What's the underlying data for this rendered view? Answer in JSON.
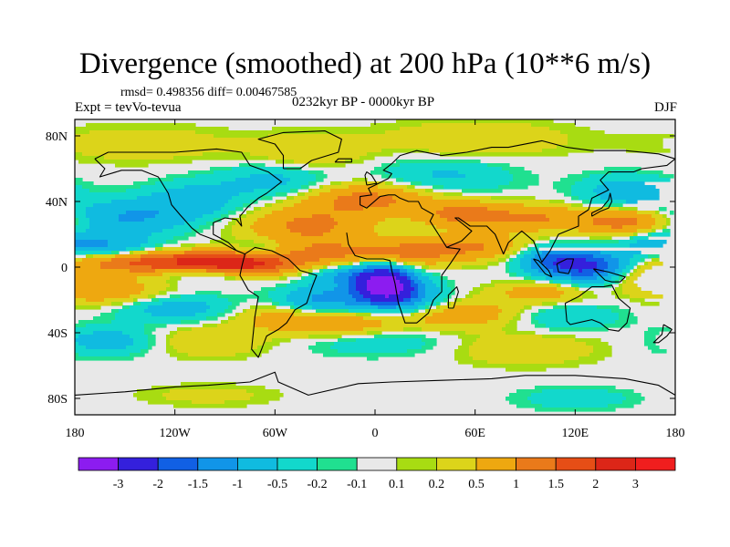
{
  "header": {
    "title": "Divergence (smoothed) at 200 hPa (10**6 m/s)",
    "stats": "rmsd= 0.498356 diff= 0.00467585",
    "experiment": "Expt = tevVo-tevua",
    "period": "0232kyr BP - 0000kyr BP",
    "season": "DJF"
  },
  "chart_data": {
    "type": "heatmap",
    "title": "Divergence (smoothed) at 200 hPa (10**6 m/s)",
    "xlabel": "",
    "ylabel": "",
    "x_range": [
      -180,
      180
    ],
    "y_range": [
      -90,
      90
    ],
    "x_ticks": [
      {
        "value": -180,
        "label": "180"
      },
      {
        "value": -120,
        "label": "120W"
      },
      {
        "value": -60,
        "label": "60W"
      },
      {
        "value": 0,
        "label": "0"
      },
      {
        "value": 60,
        "label": "60E"
      },
      {
        "value": 120,
        "label": "120E"
      },
      {
        "value": 180,
        "label": "180"
      }
    ],
    "y_ticks": [
      {
        "value": 80,
        "label": "80N"
      },
      {
        "value": 40,
        "label": "40N"
      },
      {
        "value": 0,
        "label": "0"
      },
      {
        "value": -40,
        "label": "40S"
      },
      {
        "value": -80,
        "label": "80S"
      }
    ],
    "colorbar": {
      "boundaries": [
        "-3",
        "-2",
        "-1.5",
        "-1",
        "-0.5",
        "-0.2",
        "-0.1",
        "0.1",
        "0.2",
        "0.5",
        "1",
        "1.5",
        "2",
        "3"
      ],
      "colors": [
        "#8c1cf0",
        "#3420dc",
        "#1160e4",
        "#1195e8",
        "#10bbe0",
        "#12d8cc",
        "#20e090",
        "#e8e8e8",
        "#a8dc12",
        "#dcd41a",
        "#eea810",
        "#ea7a1a",
        "#e64e16",
        "#dc2618",
        "#f01e1e"
      ]
    },
    "features": [
      {
        "name": "Indian Ocean / Africa convergence minimum",
        "lon": 5,
        "lat": -10,
        "value": -3
      },
      {
        "name": "Western Pacific convergence",
        "lon": 130,
        "lat": 0,
        "value": -2
      },
      {
        "name": "Equatorial Atlantic divergence maximum",
        "lon": -85,
        "lat": 2,
        "value": 2
      },
      {
        "name": "Central Pacific divergence band",
        "lon": -140,
        "lat": 3,
        "value": 1.5
      },
      {
        "name": "Northern midlatitude Atlantic divergence",
        "lon": -30,
        "lat": 35,
        "value": 1
      },
      {
        "name": "North Pacific convergence",
        "lon": -150,
        "lat": 30,
        "value": -1
      },
      {
        "name": "South Atlantic convergence",
        "lon": -30,
        "lat": -20,
        "value": -1
      },
      {
        "name": "Southern Indian Ocean divergence",
        "lon": 70,
        "lat": -30,
        "value": 0.5
      }
    ]
  }
}
